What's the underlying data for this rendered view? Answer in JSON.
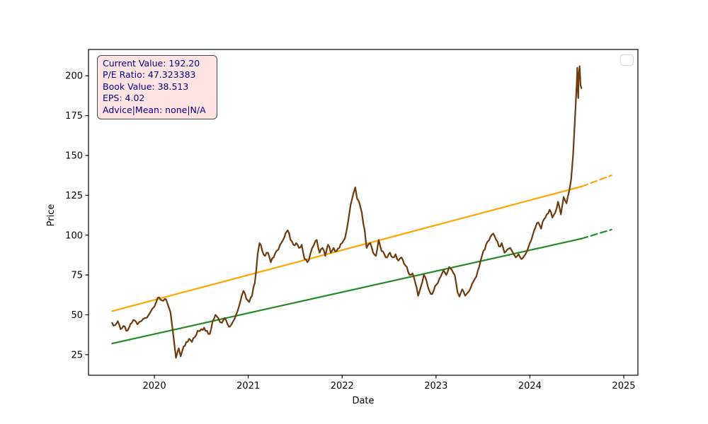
{
  "figure": {
    "background": "#ffffff"
  },
  "info_box": {
    "lines": [
      "Current Value: 192.20",
      "P/E Ratio: 47.323383",
      "Book Value: 38.513",
      "EPS: 4.02",
      "Advice|Mean: none|N/A"
    ],
    "values": {
      "current_value": "192.20",
      "pe_ratio": "47.323383",
      "book_value": "38.513",
      "eps": "4.02",
      "advice_mean": "none|N/A"
    },
    "text_color": "#00008B",
    "bg_color": "#FFE4E1",
    "border_color": "#4a4a4a"
  },
  "chart_data": {
    "type": "line",
    "title": "",
    "xlabel": "Date",
    "ylabel": "Price",
    "grid": false,
    "x_range": [
      2019.298,
      2025.151
    ],
    "y_range": [
      12.1,
      216.5
    ],
    "x_ticks": [
      "2020",
      "2021",
      "2022",
      "2023",
      "2024",
      "2025"
    ],
    "x_tick_values": [
      2020,
      2021,
      2022,
      2023,
      2024,
      2025
    ],
    "y_ticks": [
      "25",
      "50",
      "75",
      "100",
      "125",
      "150",
      "175",
      "200"
    ],
    "y_tick_values": [
      25,
      50,
      75,
      100,
      125,
      150,
      175,
      200
    ],
    "legend": {
      "visible": true,
      "position": "upper right",
      "entries": []
    },
    "colors": {
      "price": "#6F3A0D",
      "upper_trend": "#FFA500",
      "lower_trend": "#228B22"
    },
    "series": [
      {
        "name": "upper-trend",
        "color": "#FFA500",
        "width": 2.2,
        "style": "solid",
        "jitter": 0,
        "points": [
          [
            2019.55,
            52.3
          ],
          [
            2024.55,
            130.5
          ]
        ]
      },
      {
        "name": "upper-trend-projection",
        "color": "#FFA500",
        "width": 2.2,
        "style": "dashed",
        "jitter": 0,
        "points": [
          [
            2024.55,
            130.5
          ],
          [
            2024.87,
            137.5
          ]
        ]
      },
      {
        "name": "lower-trend",
        "color": "#228B22",
        "width": 2.2,
        "style": "solid",
        "jitter": 0,
        "points": [
          [
            2019.55,
            32.0
          ],
          [
            2024.55,
            97.8
          ]
        ]
      },
      {
        "name": "lower-trend-projection",
        "color": "#228B22",
        "width": 2.2,
        "style": "dashed",
        "jitter": 0,
        "points": [
          [
            2024.55,
            97.8
          ],
          [
            2024.87,
            103.5
          ]
        ]
      },
      {
        "name": "price",
        "color": "#6F3A0D",
        "width": 2.2,
        "style": "solid",
        "jitter": 1.2,
        "points": [
          [
            2019.55,
            45
          ],
          [
            2019.58,
            43.5
          ],
          [
            2019.61,
            46
          ],
          [
            2019.64,
            41
          ],
          [
            2019.67,
            43
          ],
          [
            2019.7,
            40
          ],
          [
            2019.73,
            42
          ],
          [
            2019.76,
            45
          ],
          [
            2019.79,
            46.5
          ],
          [
            2019.82,
            44
          ],
          [
            2019.86,
            46
          ],
          [
            2019.9,
            48
          ],
          [
            2019.94,
            50
          ],
          [
            2019.98,
            54
          ],
          [
            2020.02,
            58
          ],
          [
            2020.05,
            61
          ],
          [
            2020.08,
            59
          ],
          [
            2020.11,
            60
          ],
          [
            2020.14,
            57
          ],
          [
            2020.17,
            52
          ],
          [
            2020.2,
            38
          ],
          [
            2020.23,
            23
          ],
          [
            2020.26,
            29
          ],
          [
            2020.28,
            24
          ],
          [
            2020.31,
            30
          ],
          [
            2020.34,
            33
          ],
          [
            2020.37,
            35
          ],
          [
            2020.4,
            33
          ],
          [
            2020.43,
            36
          ],
          [
            2020.46,
            40
          ],
          [
            2020.5,
            41
          ],
          [
            2020.53,
            42
          ],
          [
            2020.56,
            40
          ],
          [
            2020.59,
            38
          ],
          [
            2020.62,
            46
          ],
          [
            2020.65,
            50
          ],
          [
            2020.68,
            48
          ],
          [
            2020.72,
            45
          ],
          [
            2020.75,
            48
          ],
          [
            2020.78,
            44
          ],
          [
            2020.81,
            43
          ],
          [
            2020.84,
            46
          ],
          [
            2020.87,
            50
          ],
          [
            2020.9,
            55
          ],
          [
            2020.93,
            62
          ],
          [
            2020.95,
            65
          ],
          [
            2020.98,
            60
          ],
          [
            2021.01,
            58
          ],
          [
            2021.04,
            62
          ],
          [
            2021.07,
            70
          ],
          [
            2021.1,
            88
          ],
          [
            2021.12,
            95
          ],
          [
            2021.15,
            90
          ],
          [
            2021.18,
            87
          ],
          [
            2021.21,
            89
          ],
          [
            2021.24,
            83
          ],
          [
            2021.27,
            86
          ],
          [
            2021.3,
            90
          ],
          [
            2021.34,
            94
          ],
          [
            2021.38,
            98
          ],
          [
            2021.42,
            103
          ],
          [
            2021.45,
            97
          ],
          [
            2021.48,
            94
          ],
          [
            2021.51,
            95
          ],
          [
            2021.54,
            92
          ],
          [
            2021.57,
            94
          ],
          [
            2021.6,
            85
          ],
          [
            2021.63,
            83
          ],
          [
            2021.66,
            88
          ],
          [
            2021.7,
            94
          ],
          [
            2021.73,
            97
          ],
          [
            2021.76,
            89
          ],
          [
            2021.79,
            92
          ],
          [
            2021.82,
            87
          ],
          [
            2021.85,
            94
          ],
          [
            2021.88,
            89
          ],
          [
            2021.91,
            92
          ],
          [
            2021.94,
            90
          ],
          [
            2021.97,
            92
          ],
          [
            2022.0,
            95
          ],
          [
            2022.03,
            98
          ],
          [
            2022.06,
            107
          ],
          [
            2022.09,
            119
          ],
          [
            2022.12,
            126
          ],
          [
            2022.14,
            130
          ],
          [
            2022.16,
            123
          ],
          [
            2022.18,
            121
          ],
          [
            2022.21,
            114
          ],
          [
            2022.24,
            103
          ],
          [
            2022.26,
            92
          ],
          [
            2022.3,
            95
          ],
          [
            2022.33,
            89
          ],
          [
            2022.36,
            87
          ],
          [
            2022.39,
            97
          ],
          [
            2022.42,
            90
          ],
          [
            2022.45,
            88
          ],
          [
            2022.48,
            86
          ],
          [
            2022.51,
            89
          ],
          [
            2022.54,
            86
          ],
          [
            2022.57,
            88
          ],
          [
            2022.6,
            84
          ],
          [
            2022.63,
            86
          ],
          [
            2022.66,
            82
          ],
          [
            2022.69,
            80
          ],
          [
            2022.72,
            75
          ],
          [
            2022.75,
            76
          ],
          [
            2022.78,
            70
          ],
          [
            2022.81,
            62
          ],
          [
            2022.84,
            68
          ],
          [
            2022.87,
            75
          ],
          [
            2022.9,
            71
          ],
          [
            2022.93,
            65
          ],
          [
            2022.96,
            63
          ],
          [
            2022.99,
            68
          ],
          [
            2023.02,
            70
          ],
          [
            2023.05,
            74
          ],
          [
            2023.08,
            78
          ],
          [
            2023.11,
            75
          ],
          [
            2023.14,
            80
          ],
          [
            2023.17,
            78
          ],
          [
            2023.2,
            75
          ],
          [
            2023.23,
            64
          ],
          [
            2023.25,
            61.5
          ],
          [
            2023.28,
            66
          ],
          [
            2023.31,
            62
          ],
          [
            2023.34,
            64
          ],
          [
            2023.37,
            67
          ],
          [
            2023.4,
            71
          ],
          [
            2023.43,
            74
          ],
          [
            2023.46,
            80
          ],
          [
            2023.49,
            87
          ],
          [
            2023.52,
            91
          ],
          [
            2023.55,
            96
          ],
          [
            2023.58,
            99
          ],
          [
            2023.61,
            101
          ],
          [
            2023.64,
            97
          ],
          [
            2023.67,
            93
          ],
          [
            2023.7,
            95
          ],
          [
            2023.73,
            89
          ],
          [
            2023.76,
            91
          ],
          [
            2023.79,
            92
          ],
          [
            2023.82,
            89
          ],
          [
            2023.85,
            86
          ],
          [
            2023.88,
            88
          ],
          [
            2023.91,
            85
          ],
          [
            2023.94,
            87
          ],
          [
            2023.97,
            90
          ],
          [
            2024.0,
            95
          ],
          [
            2024.03,
            100
          ],
          [
            2024.06,
            105
          ],
          [
            2024.09,
            108
          ],
          [
            2024.12,
            104
          ],
          [
            2024.15,
            110
          ],
          [
            2024.18,
            113
          ],
          [
            2024.21,
            116
          ],
          [
            2024.24,
            111
          ],
          [
            2024.27,
            114
          ],
          [
            2024.3,
            121
          ],
          [
            2024.33,
            113
          ],
          [
            2024.36,
            124
          ],
          [
            2024.39,
            120
          ],
          [
            2024.42,
            128
          ],
          [
            2024.44,
            135
          ],
          [
            2024.46,
            150
          ],
          [
            2024.48,
            172
          ],
          [
            2024.5,
            196
          ],
          [
            2024.505,
            205
          ],
          [
            2024.51,
            193
          ],
          [
            2024.515,
            186
          ],
          [
            2024.52,
            199
          ],
          [
            2024.53,
            206
          ],
          [
            2024.54,
            194
          ],
          [
            2024.55,
            192.2
          ]
        ]
      }
    ]
  }
}
